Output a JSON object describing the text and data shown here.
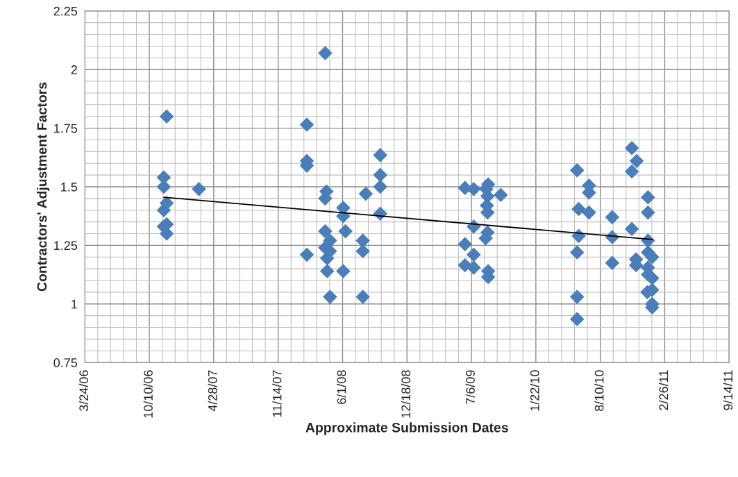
{
  "chart_data": {
    "type": "scatter",
    "xlabel": "Approximate Submission Dates",
    "ylabel": "Contractors' Adjustment Factors",
    "xlim": [
      "2006-03-24",
      "2011-09-14"
    ],
    "xticks": [
      {
        "value": "2006-03-24",
        "label": "3/24/06"
      },
      {
        "value": "2006-10-10",
        "label": "10/10/06"
      },
      {
        "value": "2007-04-28",
        "label": "4/28/07"
      },
      {
        "value": "2007-11-14",
        "label": "11/14/07"
      },
      {
        "value": "2008-06-01",
        "label": "6/1/08"
      },
      {
        "value": "2008-12-18",
        "label": "12/18/08"
      },
      {
        "value": "2009-07-06",
        "label": "7/6/09"
      },
      {
        "value": "2010-01-22",
        "label": "1/22/10"
      },
      {
        "value": "2010-08-10",
        "label": "8/10/10"
      },
      {
        "value": "2011-02-26",
        "label": "2/26/11"
      },
      {
        "value": "2011-09-14",
        "label": "9/14/11"
      }
    ],
    "ylim": [
      0.75,
      2.25
    ],
    "yticks": [
      0.75,
      1,
      1.25,
      1.5,
      1.75,
      2,
      2.25
    ],
    "grid": true,
    "legend": false,
    "marker": "diamond",
    "series": [
      {
        "color": "#4a7ebb",
        "x": [
          "2006-12-03",
          "2006-11-24",
          "2006-11-24",
          "2007-03-13",
          "2006-12-03",
          "2006-11-24",
          "2006-12-03",
          "2006-11-24",
          "2006-12-03",
          "2008-02-11",
          "2008-04-08",
          "2008-02-11",
          "2008-02-11",
          "2008-09-26",
          "2008-09-26",
          "2008-09-26",
          "2008-04-12",
          "2008-04-08",
          "2008-08-12",
          "2008-06-03",
          "2008-06-03",
          "2008-09-26",
          "2008-04-08",
          "2008-06-10",
          "2008-04-23",
          "2008-08-03",
          "2008-04-08",
          "2008-04-23",
          "2008-08-03",
          "2008-02-11",
          "2008-04-14",
          "2008-04-14",
          "2008-06-03",
          "2008-04-23",
          "2008-08-03",
          "2009-06-16",
          "2009-07-13",
          "2009-08-27",
          "2009-08-21",
          "2009-10-05",
          "2009-08-25",
          "2009-08-23",
          "2009-08-25",
          "2009-07-13",
          "2009-08-25",
          "2009-08-19",
          "2009-06-16",
          "2009-07-13",
          "2009-06-16",
          "2009-07-13",
          "2009-08-27",
          "2009-08-27",
          "2010-05-30",
          "2010-07-06",
          "2010-07-06",
          "2010-06-04",
          "2010-07-06",
          "2010-09-16",
          "2010-11-16",
          "2010-12-01",
          "2010-11-16",
          "2011-01-05",
          "2011-01-05",
          "2010-11-16",
          "2010-06-04",
          "2010-09-16",
          "2011-01-05",
          "2010-05-30",
          "2010-09-16",
          "2010-11-29",
          "2010-11-29",
          "2011-01-05",
          "2011-01-18",
          "2011-01-05",
          "2011-01-05",
          "2011-01-18",
          "2011-01-03",
          "2011-01-18",
          "2011-01-18",
          "2011-01-18",
          "2010-05-30",
          "2010-05-30"
        ],
        "values": [
          1.8,
          1.54,
          1.5,
          1.49,
          1.43,
          1.4,
          1.34,
          1.33,
          1.3,
          1.765,
          2.07,
          1.61,
          1.59,
          1.635,
          1.55,
          1.5,
          1.48,
          1.45,
          1.47,
          1.41,
          1.375,
          1.385,
          1.31,
          1.31,
          1.27,
          1.27,
          1.24,
          1.225,
          1.225,
          1.21,
          1.195,
          1.14,
          1.14,
          1.03,
          1.03,
          1.495,
          1.49,
          1.51,
          1.49,
          1.465,
          1.46,
          1.42,
          1.39,
          1.33,
          1.305,
          1.28,
          1.255,
          1.21,
          1.165,
          1.155,
          1.14,
          1.115,
          1.57,
          1.505,
          1.475,
          1.405,
          1.39,
          1.37,
          1.665,
          1.61,
          1.565,
          1.455,
          1.39,
          1.32,
          1.29,
          1.285,
          1.27,
          1.22,
          1.175,
          1.19,
          1.165,
          1.22,
          1.2,
          1.155,
          1.125,
          1.11,
          1.05,
          1.06,
          1.0,
          0.985,
          1.03,
          0.935
        ]
      },
      {
        "type": "line",
        "color": "#000000",
        "marker": "none",
        "line_style": "solid",
        "x": [
          "2006-11-24",
          "2011-01-18"
        ],
        "values": [
          1.455,
          1.275
        ]
      }
    ]
  }
}
